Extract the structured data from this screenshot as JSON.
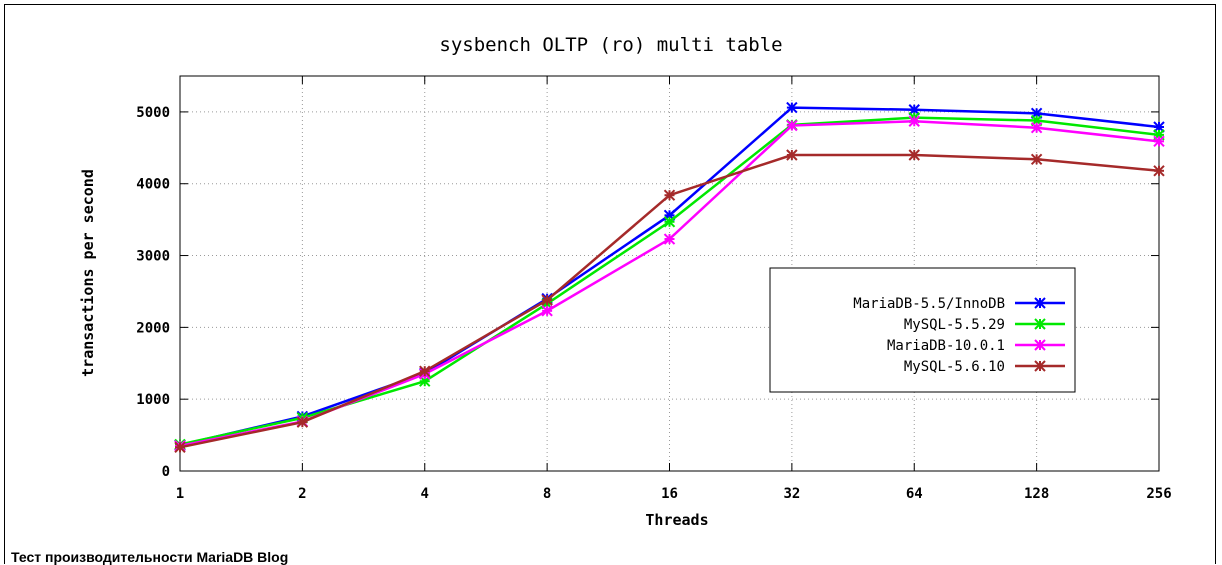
{
  "caption": "Тест производительности MariaDB Blog",
  "chart_data": {
    "type": "line",
    "title": "sysbench OLTP (ro) multi table",
    "xlabel": "Threads",
    "ylabel": "transactions per second",
    "categories": [
      "1",
      "2",
      "4",
      "8",
      "16",
      "32",
      "64",
      "128",
      "256"
    ],
    "ylim": [
      0,
      5500
    ],
    "yticks": [
      0,
      1000,
      2000,
      3000,
      4000,
      5000
    ],
    "grid": true,
    "legend_position": "center-right",
    "series": [
      {
        "name": "MariaDB-5.5/InnoDB",
        "color": "#0000ff",
        "values": [
          360,
          760,
          1360,
          2400,
          3560,
          5060,
          5030,
          4980,
          4790
        ]
      },
      {
        "name": "MySQL-5.5.29",
        "color": "#00e800",
        "values": [
          370,
          740,
          1250,
          2330,
          3470,
          4820,
          4920,
          4880,
          4680
        ]
      },
      {
        "name": "MariaDB-10.0.1",
        "color": "#ff00ff",
        "values": [
          350,
          690,
          1350,
          2230,
          3230,
          4810,
          4870,
          4780,
          4590
        ]
      },
      {
        "name": "MySQL-5.6.10",
        "color": "#a52a2a",
        "values": [
          330,
          680,
          1390,
          2380,
          3840,
          4400,
          4400,
          4340,
          4180
        ]
      }
    ]
  }
}
